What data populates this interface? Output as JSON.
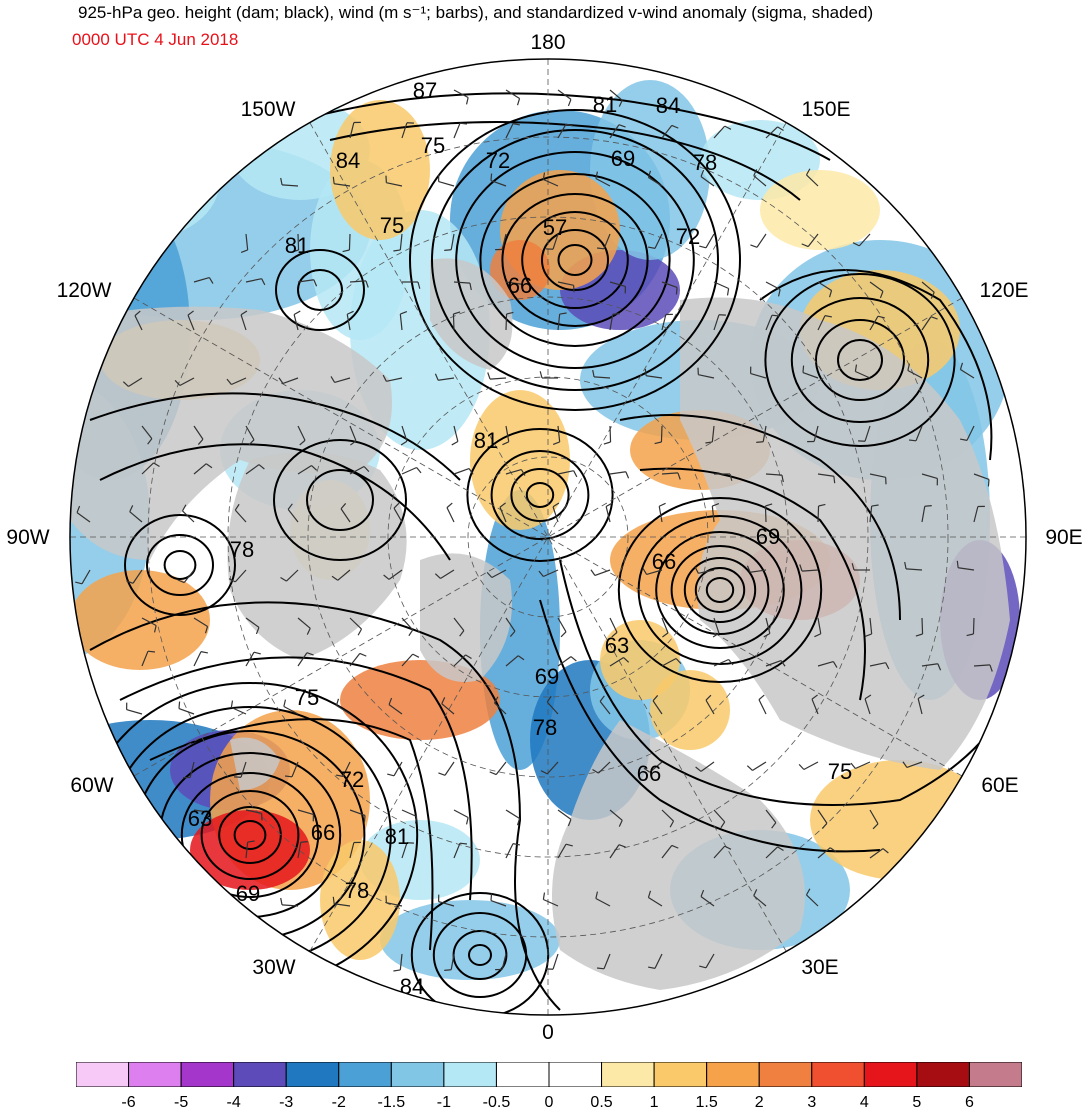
{
  "header": {
    "title": "925-hPa geo. height (dam; black), wind (m s⁻¹; barbs), and standardized v-wind anomaly (sigma, shaded)",
    "valid_time": "0000 UTC 4 Jun 2018",
    "valid_time_color": "#e8111a"
  },
  "map": {
    "projection": "north polar stereographic",
    "longitude_labels": [
      "180",
      "150W",
      "150E",
      "120W",
      "120E",
      "90W",
      "90E",
      "60W",
      "60E",
      "30W",
      "30E",
      "0"
    ],
    "height_contour_labels": [
      "87",
      "81",
      "84",
      "75",
      "72",
      "69",
      "78",
      "84",
      "75",
      "57",
      "72",
      "81",
      "66",
      "81",
      "78",
      "66",
      "69",
      "63",
      "75",
      "69",
      "78",
      "72",
      "66",
      "81",
      "63",
      "66",
      "75",
      "69",
      "78",
      "84"
    ],
    "land_color": "#c8c8c8",
    "contour_color": "#000000"
  },
  "colorbar": {
    "tick_labels": [
      "-6",
      "-5",
      "-4",
      "-3",
      "-2",
      "-1.5",
      "-1",
      "-0.5",
      "0",
      "0.5",
      "1",
      "1.5",
      "2",
      "3",
      "4",
      "5",
      "6"
    ],
    "colors": [
      "#f6c9f6",
      "#de7ff0",
      "#a536cc",
      "#5c4bb8",
      "#1f78c0",
      "#4ba0d6",
      "#82c6e6",
      "#b5e8f5",
      "#ffffff",
      "#ffffff",
      "#fde9a7",
      "#f9c96a",
      "#f5a24b",
      "#ef8040",
      "#f05030",
      "#e5151b",
      "#a50d12",
      "#c47b8b"
    ]
  }
}
